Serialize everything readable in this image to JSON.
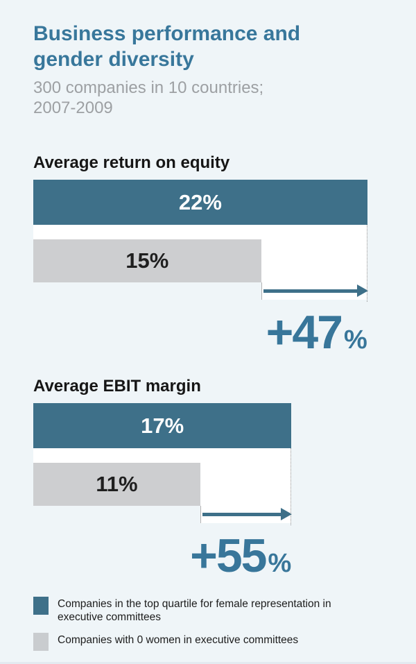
{
  "page": {
    "background": "#eff5f8",
    "title_line1": "Business performance and",
    "title_line2": "gender diversity",
    "subtitle_line1": "300 companies in 10 countries;",
    "subtitle_line2": "2007-2009"
  },
  "colors": {
    "accent_teal_bar": "#3e7089",
    "teal_text": "#38769a",
    "gray_bar": "#cdced0",
    "subtitle_gray": "#9da0a3",
    "heading_black": "#161616",
    "plot_background": "#ffffff"
  },
  "chart_data": [
    {
      "type": "bar",
      "title": "Average return on equity",
      "unit": "%",
      "orientation": "horizontal",
      "categories": [
        "Companies in the top quartile for female representation in executive committees",
        "Companies with 0 women in executive committees"
      ],
      "series": [
        {
          "name": "Companies in the top quartile for female representation in executive committees",
          "value": 22,
          "label": "22%",
          "color": "#3e7089"
        },
        {
          "name": "Companies with 0 women in executive committees",
          "value": 15,
          "label": "15%",
          "color": "#cdced0"
        }
      ],
      "delta": {
        "value": "+47",
        "unit": "%"
      }
    },
    {
      "type": "bar",
      "title": "Average EBIT margin",
      "unit": "%",
      "orientation": "horizontal",
      "categories": [
        "Companies in the top quartile for female representation in executive committees",
        "Companies with 0 women in executive committees"
      ],
      "series": [
        {
          "name": "Companies in the top quartile for female representation in executive committees",
          "value": 17,
          "label": "17%",
          "color": "#3e7089"
        },
        {
          "name": "Companies with 0 women in executive committees",
          "value": 11,
          "label": "11%",
          "color": "#cdced0"
        }
      ],
      "delta": {
        "value": "+55",
        "unit": "%"
      }
    }
  ],
  "legend": {
    "items": [
      {
        "swatch_color": "#3e7089",
        "label": "Companies in the top quartile for female representation in executive committees"
      },
      {
        "swatch_color": "#c9cccf",
        "label": "Companies with 0 women in executive committees"
      }
    ]
  }
}
